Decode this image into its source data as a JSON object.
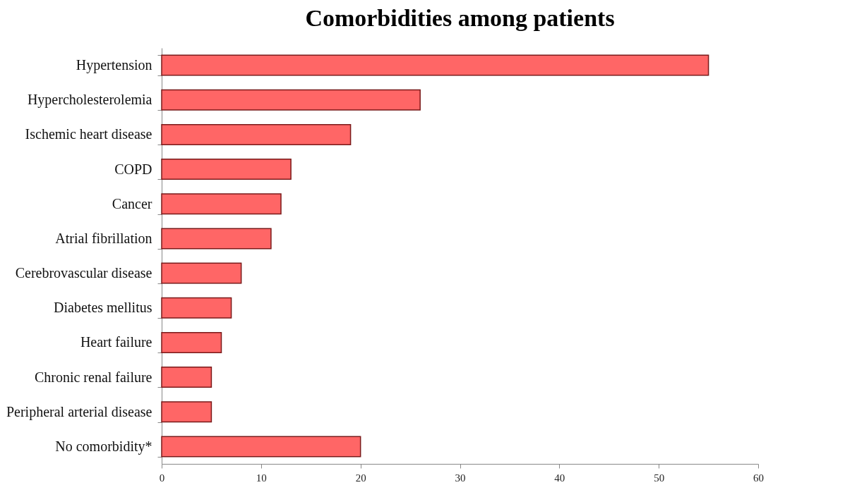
{
  "chart_data": {
    "type": "bar",
    "orientation": "horizontal",
    "title": "Comorbidities among patients",
    "categories": [
      "Hypertension",
      "Hypercholesterolemia",
      "Ischemic heart disease",
      "COPD",
      "Cancer",
      "Atrial fibrillation",
      "Cerebrovascular disease",
      "Diabetes mellitus",
      "Heart failure",
      "Chronic renal failure",
      "Peripheral arterial disease",
      "No comorbidity*"
    ],
    "values": [
      55,
      26,
      19,
      13,
      12,
      11,
      8,
      7,
      6,
      5,
      5,
      20
    ],
    "color": "#ff6666",
    "xlim": [
      0,
      60
    ],
    "xticks": [
      0,
      10,
      20,
      30,
      40,
      50,
      60
    ],
    "grid": false
  }
}
